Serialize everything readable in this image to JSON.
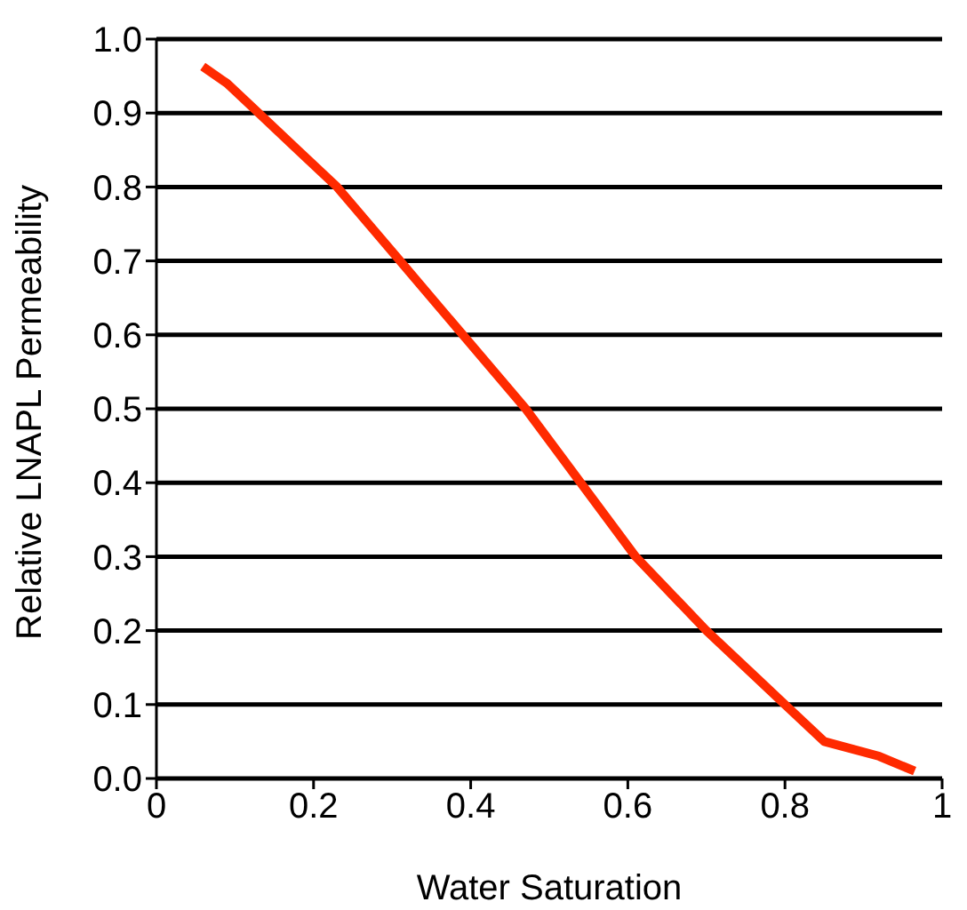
{
  "chart_data": {
    "type": "line",
    "xlabel": "Water Saturation",
    "ylabel": "Relative LNAPL Permeability",
    "x": [
      0.059,
      0.09,
      0.13,
      0.18,
      0.23,
      0.31,
      0.39,
      0.47,
      0.54,
      0.61,
      0.7,
      0.8,
      0.85,
      0.92,
      0.965
    ],
    "series": [
      {
        "color": "#ff2a00",
        "values": [
          0.963,
          0.94,
          0.9,
          0.85,
          0.8,
          0.7,
          0.6,
          0.5,
          0.4,
          0.3,
          0.2,
          0.1,
          0.05,
          0.03,
          0.01
        ]
      }
    ],
    "xlim": [
      0,
      1
    ],
    "xticks": [
      0,
      0.2,
      0.4,
      0.6,
      0.8,
      1
    ],
    "ylim": [
      0,
      1
    ],
    "yticks": [
      {
        "value": 0,
        "label": "0.0"
      },
      0.1,
      0.2,
      0.3,
      0.4,
      0.5,
      0.6,
      0.7,
      0.8,
      0.9,
      {
        "value": 1,
        "label": "1.0"
      }
    ],
    "grid": "y",
    "legend": false,
    "marker": "none",
    "line_style": "solid"
  }
}
